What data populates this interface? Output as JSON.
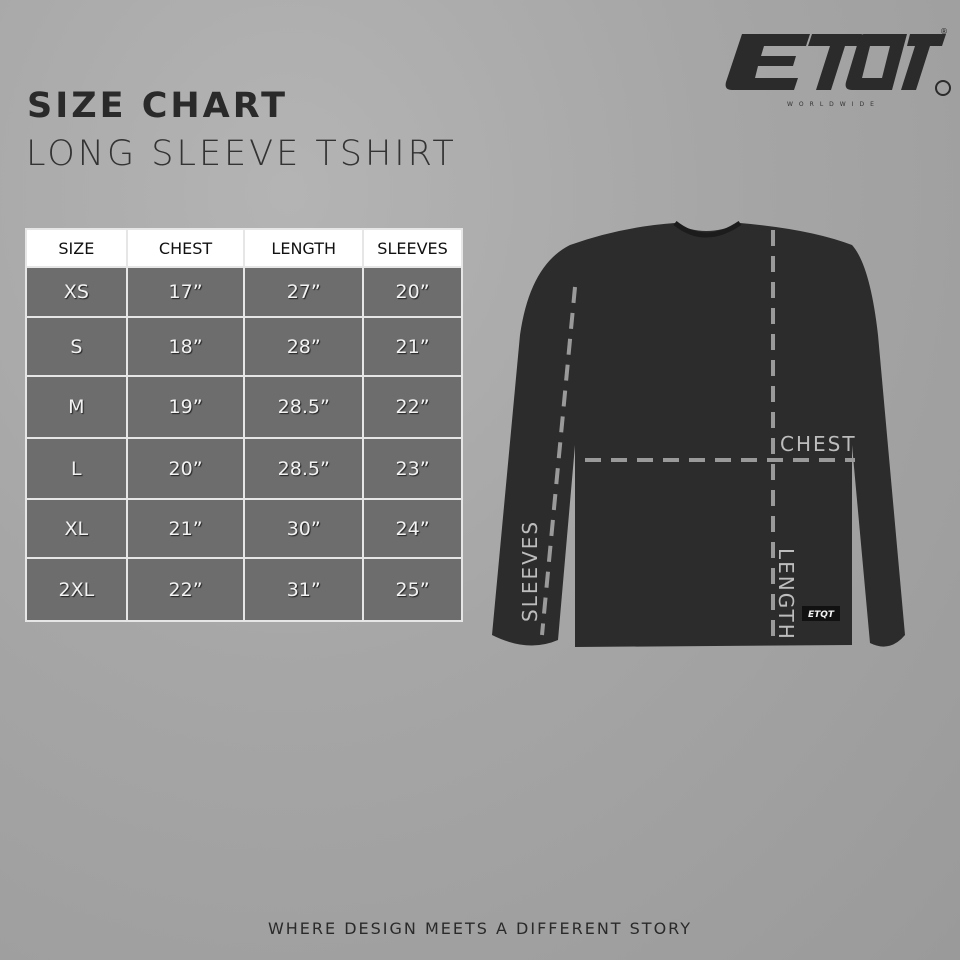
{
  "brand": {
    "name": "ETQT",
    "tagline": "WORLDWIDE",
    "registered": "®"
  },
  "title": "SIZE CHART",
  "subtitle": "LONG SLEEVE TSHIRT",
  "table": {
    "headers": [
      "SIZE",
      "CHEST",
      "LENGTH",
      "SLEEVES"
    ],
    "rows": [
      [
        "XS",
        "17”",
        "27”",
        "20”"
      ],
      [
        "S",
        "18”",
        "28”",
        "21”"
      ],
      [
        "M",
        "19”",
        "28.5”",
        "22”"
      ],
      [
        "L",
        "20”",
        "28.5”",
        "23”"
      ],
      [
        "XL",
        "21”",
        "30”",
        "24”"
      ],
      [
        "2XL",
        "22”",
        "31”",
        "25”"
      ]
    ]
  },
  "diagram": {
    "chest": "CHEST",
    "length": "LENGTH",
    "sleeves": "SLEEVES",
    "shirt_color": "#2c2c2c",
    "line_color": "#9a9a9a"
  },
  "footer": "WHERE DESIGN MEETS A DIFFERENT STORY"
}
